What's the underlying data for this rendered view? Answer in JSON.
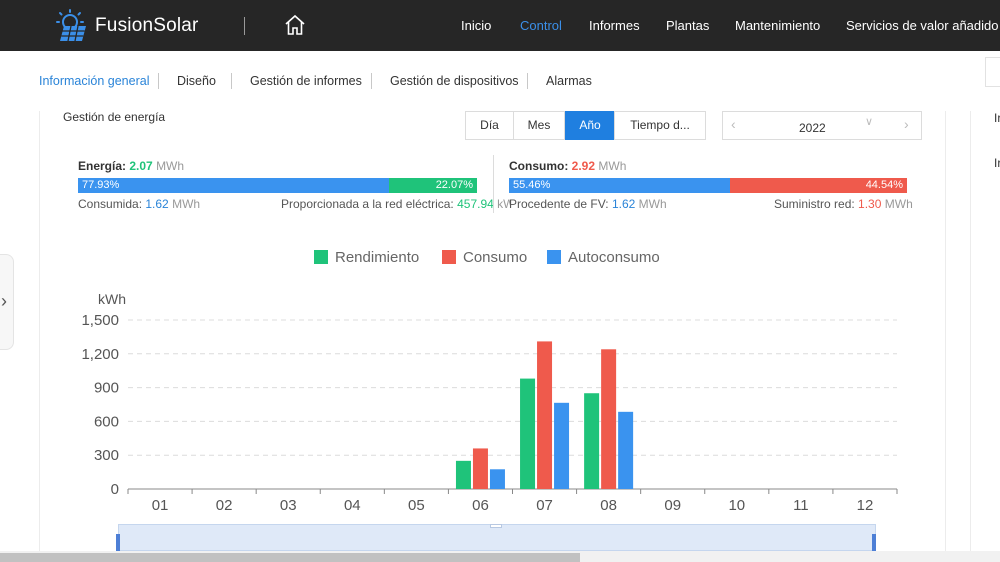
{
  "header": {
    "brand": "FusionSolar",
    "nav": [
      {
        "label": "Inicio",
        "active": false
      },
      {
        "label": "Control",
        "active": true
      },
      {
        "label": "Informes",
        "active": false
      },
      {
        "label": "Plantas",
        "active": false
      },
      {
        "label": "Mantenimiento",
        "active": false
      },
      {
        "label": "Servicios de valor añadido",
        "active": false
      }
    ]
  },
  "subnav": {
    "tabs": [
      {
        "label": "Información general",
        "active": true
      },
      {
        "label": "Diseño",
        "active": false
      },
      {
        "label": "Gestión de informes",
        "active": false
      },
      {
        "label": "Gestión de dispositivos",
        "active": false
      },
      {
        "label": "Alarmas",
        "active": false
      }
    ]
  },
  "side": {
    "arrow": "›",
    "right_items": [
      "Ir",
      "Ir"
    ]
  },
  "card": {
    "title": "Gestión de energía",
    "periods": [
      {
        "label": "Día",
        "active": false
      },
      {
        "label": "Mes",
        "active": false
      },
      {
        "label": "Año",
        "active": true
      },
      {
        "label": "Tiempo d...",
        "active": false
      }
    ],
    "date": {
      "value": "2022",
      "prev": "‹",
      "next": "›",
      "chevron": "∨"
    }
  },
  "summary": {
    "energy": {
      "label": "Energía:",
      "value": "2.07",
      "unit": "MWh",
      "bar_left_pct": "77.93%",
      "bar_right_pct": "22.07%",
      "bar_left_fraction": 0.7793,
      "consumed_label": "Consumida:",
      "consumed_value": "1.62",
      "consumed_unit": "MWh",
      "grid_label": "Proporcionada a la red eléctrica:",
      "grid_value": "457.94",
      "grid_unit": "kWh"
    },
    "consumption": {
      "label": "Consumo:",
      "value": "2.92",
      "unit": "MWh",
      "bar_left_pct": "55.46%",
      "bar_right_pct": "44.54%",
      "bar_left_fraction": 0.5546,
      "pv_label": "Procedente de FV:",
      "pv_value": "1.62",
      "pv_unit": "MWh",
      "supply_label": "Suministro red:",
      "supply_value": "1.30",
      "supply_unit": "MWh"
    }
  },
  "colors": {
    "topbar": "#262626",
    "accent": "#1f7fe0",
    "green": "#1fc37a",
    "red": "#ef5a4c",
    "blue": "#3a93ef"
  },
  "chart_data": {
    "type": "bar",
    "ylabel": "kWh",
    "ylim": [
      0,
      1500
    ],
    "yticks": [
      0,
      300,
      600,
      900,
      1200,
      1500
    ],
    "yticks_labels": [
      "0",
      "300",
      "600",
      "900",
      "1,200",
      "1,500"
    ],
    "categories": [
      "01",
      "02",
      "03",
      "04",
      "05",
      "06",
      "07",
      "08",
      "09",
      "10",
      "11",
      "12"
    ],
    "legend_position": "top-center",
    "grid": true,
    "series": [
      {
        "name": "Rendimiento",
        "color": "#1fc37a",
        "values": [
          0,
          0,
          0,
          0,
          0,
          250,
          980,
          850,
          0,
          0,
          0,
          0
        ]
      },
      {
        "name": "Consumo",
        "color": "#ef5a4c",
        "values": [
          0,
          0,
          0,
          0,
          0,
          360,
          1310,
          1240,
          0,
          0,
          0,
          0
        ]
      },
      {
        "name": "Autoconsumo",
        "color": "#3a93ef",
        "values": [
          0,
          0,
          0,
          0,
          0,
          175,
          765,
          685,
          0,
          0,
          0,
          0
        ]
      }
    ]
  }
}
